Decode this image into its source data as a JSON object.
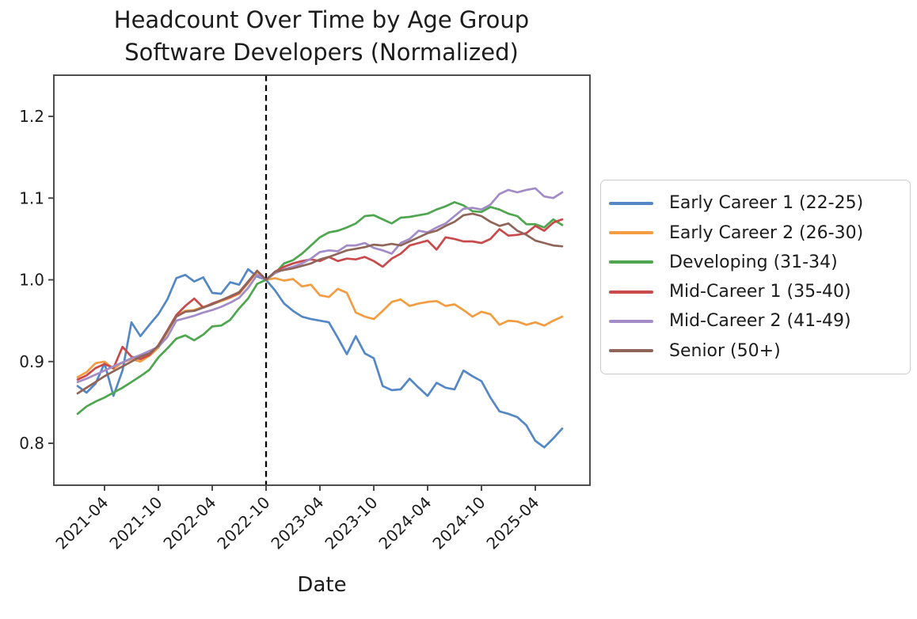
{
  "figure": {
    "title_line1": "Headcount Over Time by Age Group",
    "title_line2": "Software Developers (Normalized)",
    "background_color": "#ffffff",
    "axis_color": "#454545",
    "text_color": "#1c1c1c"
  },
  "chart_data": {
    "type": "line",
    "title": "Headcount Over Time by Age Group\nSoftware Developers (Normalized)",
    "xlabel": "Date",
    "ylabel": "",
    "grid": false,
    "legend_position": "right-outside",
    "ylim": [
      0.75,
      1.25
    ],
    "y_ticks": [
      0.8,
      0.9,
      1.0,
      1.1,
      1.2
    ],
    "x_tick_labels": [
      "2021-04",
      "2021-10",
      "2022-04",
      "2022-10",
      "2023-04",
      "2023-10",
      "2024-04",
      "2024-10",
      "2025-04"
    ],
    "event_vline": {
      "month": "2022-10",
      "style": "dashed",
      "color": "#000000"
    },
    "x": [
      "2021-01",
      "2021-02",
      "2021-03",
      "2021-04",
      "2021-05",
      "2021-06",
      "2021-07",
      "2021-08",
      "2021-09",
      "2021-10",
      "2021-11",
      "2021-12",
      "2022-01",
      "2022-02",
      "2022-03",
      "2022-04",
      "2022-05",
      "2022-06",
      "2022-07",
      "2022-08",
      "2022-09",
      "2022-10",
      "2022-11",
      "2022-12",
      "2023-01",
      "2023-02",
      "2023-03",
      "2023-04",
      "2023-05",
      "2023-06",
      "2023-07",
      "2023-08",
      "2023-09",
      "2023-10",
      "2023-11",
      "2023-12",
      "2024-01",
      "2024-02",
      "2024-03",
      "2024-04",
      "2024-05",
      "2024-06",
      "2024-07",
      "2024-08",
      "2024-09",
      "2024-10",
      "2024-11",
      "2024-12",
      "2025-01",
      "2025-02",
      "2025-03",
      "2025-04",
      "2025-05",
      "2025-06",
      "2025-07"
    ],
    "series": [
      {
        "name": "Early Career 1 (22-25)",
        "color": "#5487c5",
        "values": [
          0.87,
          0.862,
          0.873,
          0.898,
          0.858,
          0.889,
          0.948,
          0.931,
          0.945,
          0.958,
          0.976,
          1.002,
          1.006,
          0.998,
          1.003,
          0.984,
          0.983,
          0.997,
          0.994,
          1.013,
          1.004,
          1.0,
          0.987,
          0.971,
          0.962,
          0.955,
          0.952,
          0.95,
          0.948,
          0.929,
          0.909,
          0.931,
          0.91,
          0.904,
          0.87,
          0.865,
          0.866,
          0.879,
          0.868,
          0.858,
          0.874,
          0.868,
          0.866,
          0.889,
          0.882,
          0.876,
          0.856,
          0.839,
          0.836,
          0.832,
          0.822,
          0.803,
          0.795,
          0.806,
          0.818
        ]
      },
      {
        "name": "Early Career 2 (26-30)",
        "color": "#f39c42",
        "values": [
          0.881,
          0.887,
          0.898,
          0.9,
          0.891,
          0.899,
          0.903,
          0.9,
          0.907,
          0.917,
          0.936,
          0.956,
          0.962,
          0.963,
          0.967,
          0.97,
          0.974,
          0.978,
          0.983,
          0.996,
          1.01,
          1.0,
          1.002,
          0.999,
          1.001,
          0.992,
          0.994,
          0.981,
          0.979,
          0.989,
          0.984,
          0.96,
          0.955,
          0.952,
          0.962,
          0.973,
          0.976,
          0.968,
          0.971,
          0.973,
          0.974,
          0.968,
          0.97,
          0.963,
          0.955,
          0.961,
          0.958,
          0.945,
          0.95,
          0.949,
          0.945,
          0.948,
          0.944,
          0.95,
          0.955
        ]
      },
      {
        "name": "Developing (31-34)",
        "color": "#4ea64e",
        "values": [
          0.836,
          0.845,
          0.851,
          0.856,
          0.862,
          0.868,
          0.875,
          0.882,
          0.89,
          0.905,
          0.916,
          0.928,
          0.932,
          0.926,
          0.933,
          0.943,
          0.944,
          0.951,
          0.965,
          0.977,
          0.995,
          1.0,
          1.008,
          1.02,
          1.024,
          1.032,
          1.042,
          1.052,
          1.058,
          1.06,
          1.064,
          1.069,
          1.078,
          1.079,
          1.074,
          1.069,
          1.076,
          1.077,
          1.079,
          1.081,
          1.086,
          1.09,
          1.095,
          1.091,
          1.084,
          1.083,
          1.089,
          1.086,
          1.081,
          1.078,
          1.068,
          1.068,
          1.064,
          1.074,
          1.067
        ]
      },
      {
        "name": "Mid-Career 1 (35-40)",
        "color": "#c94a4b",
        "values": [
          0.878,
          0.883,
          0.892,
          0.897,
          0.892,
          0.918,
          0.906,
          0.903,
          0.908,
          0.92,
          0.938,
          0.957,
          0.968,
          0.977,
          0.966,
          0.971,
          0.975,
          0.979,
          0.984,
          0.997,
          1.011,
          1.0,
          1.01,
          1.016,
          1.02,
          1.023,
          1.025,
          1.023,
          1.028,
          1.023,
          1.026,
          1.025,
          1.028,
          1.023,
          1.016,
          1.026,
          1.032,
          1.042,
          1.045,
          1.048,
          1.037,
          1.052,
          1.05,
          1.047,
          1.047,
          1.045,
          1.05,
          1.062,
          1.054,
          1.055,
          1.057,
          1.066,
          1.06,
          1.07,
          1.074
        ]
      },
      {
        "name": "Mid-Career 2 (41-49)",
        "color": "#a28bc7",
        "values": [
          0.875,
          0.879,
          0.884,
          0.889,
          0.894,
          0.899,
          0.904,
          0.908,
          0.913,
          0.918,
          0.93,
          0.95,
          0.953,
          0.956,
          0.96,
          0.963,
          0.967,
          0.972,
          0.978,
          0.99,
          1.006,
          1.0,
          1.008,
          1.013,
          1.016,
          1.02,
          1.026,
          1.034,
          1.036,
          1.035,
          1.042,
          1.042,
          1.045,
          1.039,
          1.036,
          1.032,
          1.045,
          1.05,
          1.06,
          1.058,
          1.064,
          1.069,
          1.078,
          1.087,
          1.088,
          1.086,
          1.092,
          1.105,
          1.11,
          1.107,
          1.11,
          1.112,
          1.102,
          1.1,
          1.107
        ]
      },
      {
        "name": "Senior (50+)",
        "color": "#8f655a",
        "values": [
          0.861,
          0.868,
          0.875,
          0.882,
          0.888,
          0.894,
          0.9,
          0.906,
          0.91,
          0.919,
          0.937,
          0.955,
          0.961,
          0.962,
          0.966,
          0.97,
          0.975,
          0.98,
          0.985,
          0.998,
          1.011,
          1.0,
          1.01,
          1.012,
          1.014,
          1.017,
          1.02,
          1.025,
          1.028,
          1.032,
          1.036,
          1.038,
          1.04,
          1.043,
          1.042,
          1.044,
          1.042,
          1.047,
          1.052,
          1.057,
          1.06,
          1.066,
          1.071,
          1.079,
          1.081,
          1.078,
          1.071,
          1.066,
          1.069,
          1.06,
          1.055,
          1.048,
          1.045,
          1.042,
          1.041
        ]
      }
    ]
  }
}
